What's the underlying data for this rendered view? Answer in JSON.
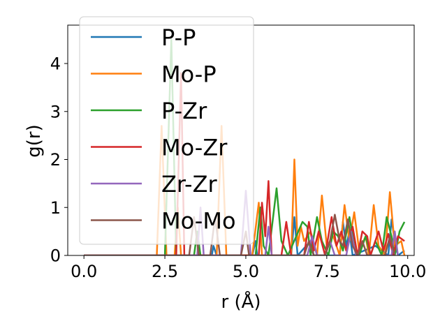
{
  "chart_data": {
    "type": "line",
    "xlabel": "r (Å)",
    "ylabel": "g(r)",
    "xlim": [
      -0.5,
      10.2
    ],
    "ylim": [
      0,
      4.8
    ],
    "xticks": [
      0.0,
      2.5,
      5.0,
      7.5,
      10.0
    ],
    "xtick_labels": [
      "0.0",
      "2.5",
      "5.0",
      "7.5",
      "10.0"
    ],
    "yticks": [
      0,
      1,
      2,
      3,
      4
    ],
    "ytick_labels": [
      "0",
      "1",
      "2",
      "3",
      "4"
    ],
    "grid": false,
    "legend_position": "upper-left",
    "series": [
      {
        "name": "P-P",
        "color": "#1f77b4",
        "points": [
          [
            0,
            0
          ],
          [
            3.95,
            0
          ],
          [
            4.0,
            0.2
          ],
          [
            4.1,
            0
          ],
          [
            5.2,
            0
          ],
          [
            5.3,
            0.3
          ],
          [
            5.35,
            0
          ],
          [
            6.4,
            0
          ],
          [
            6.5,
            0.8
          ],
          [
            6.6,
            0
          ],
          [
            7.0,
            0.3
          ],
          [
            7.1,
            0
          ],
          [
            7.9,
            0
          ],
          [
            8.0,
            0.7
          ],
          [
            8.1,
            0.2
          ],
          [
            8.2,
            0.5
          ],
          [
            8.3,
            0
          ],
          [
            9.0,
            0.2
          ],
          [
            9.4,
            0
          ],
          [
            9.5,
            0.75
          ],
          [
            9.6,
            0.3
          ],
          [
            9.7,
            0
          ],
          [
            9.9,
            0.1
          ]
        ]
      },
      {
        "name": "Mo-P",
        "color": "#ff7f0e",
        "points": [
          [
            0,
            0
          ],
          [
            2.25,
            0
          ],
          [
            2.4,
            2.7
          ],
          [
            2.55,
            0
          ],
          [
            2.8,
            0
          ],
          [
            2.9,
            1.0
          ],
          [
            3.0,
            0
          ],
          [
            4.1,
            0
          ],
          [
            4.25,
            2.7
          ],
          [
            4.4,
            0
          ],
          [
            5.2,
            0
          ],
          [
            5.4,
            1.1
          ],
          [
            5.5,
            0
          ],
          [
            6.4,
            0
          ],
          [
            6.5,
            2.0
          ],
          [
            6.6,
            0.2
          ],
          [
            6.7,
            0.6
          ],
          [
            6.8,
            0.3
          ],
          [
            7.0,
            0.5
          ],
          [
            7.2,
            0
          ],
          [
            7.35,
            1.25
          ],
          [
            7.5,
            0.2
          ],
          [
            7.7,
            0.4
          ],
          [
            7.9,
            0
          ],
          [
            8.05,
            1.05
          ],
          [
            8.2,
            0.3
          ],
          [
            8.35,
            0.9
          ],
          [
            8.5,
            0.1
          ],
          [
            8.7,
            0.4
          ],
          [
            8.8,
            0
          ],
          [
            8.95,
            1.05
          ],
          [
            9.1,
            0.2
          ],
          [
            9.3,
            0
          ],
          [
            9.45,
            1.32
          ],
          [
            9.6,
            0.2
          ],
          [
            9.8,
            0.3
          ],
          [
            9.9,
            0
          ]
        ]
      },
      {
        "name": "P-Zr",
        "color": "#2ca02c",
        "points": [
          [
            0,
            0
          ],
          [
            2.5,
            0
          ],
          [
            2.7,
            4.5
          ],
          [
            2.85,
            0
          ],
          [
            3.4,
            0
          ],
          [
            3.5,
            0.5
          ],
          [
            3.6,
            0
          ],
          [
            5.3,
            0
          ],
          [
            5.45,
            1.0
          ],
          [
            5.55,
            0.2
          ],
          [
            5.7,
            0
          ],
          [
            5.95,
            1.4
          ],
          [
            6.1,
            0.3
          ],
          [
            6.3,
            0
          ],
          [
            6.75,
            0.7
          ],
          [
            6.9,
            0.6
          ],
          [
            7.0,
            0
          ],
          [
            7.2,
            0.8
          ],
          [
            7.35,
            0.3
          ],
          [
            7.55,
            0
          ],
          [
            7.7,
            0.5
          ],
          [
            7.85,
            0.4
          ],
          [
            8.0,
            0.1
          ],
          [
            8.2,
            0.8
          ],
          [
            8.35,
            0.2
          ],
          [
            8.5,
            0
          ],
          [
            8.7,
            0.4
          ],
          [
            8.85,
            0
          ],
          [
            9.0,
            0.3
          ],
          [
            9.2,
            0
          ],
          [
            9.35,
            0.8
          ],
          [
            9.5,
            0.4
          ],
          [
            9.6,
            0
          ],
          [
            9.75,
            0.5
          ],
          [
            9.9,
            0.7
          ]
        ]
      },
      {
        "name": "Mo-Zr",
        "color": "#d62728",
        "points": [
          [
            0,
            0
          ],
          [
            2.85,
            0
          ],
          [
            3.0,
            3.8
          ],
          [
            3.1,
            0
          ],
          [
            5.4,
            0
          ],
          [
            5.5,
            1.1
          ],
          [
            5.6,
            0.4
          ],
          [
            5.7,
            1.55
          ],
          [
            5.8,
            0
          ],
          [
            6.1,
            0
          ],
          [
            6.25,
            0.7
          ],
          [
            6.4,
            0
          ],
          [
            6.8,
            0
          ],
          [
            6.95,
            0.7
          ],
          [
            7.1,
            0.1
          ],
          [
            7.25,
            0.5
          ],
          [
            7.45,
            0
          ],
          [
            7.65,
            0.8
          ],
          [
            7.8,
            0.2
          ],
          [
            7.95,
            0.5
          ],
          [
            8.1,
            0.1
          ],
          [
            8.3,
            0.6
          ],
          [
            8.45,
            0
          ],
          [
            8.6,
            0.5
          ],
          [
            8.75,
            0.4
          ],
          [
            8.85,
            0
          ],
          [
            9.1,
            0.5
          ],
          [
            9.25,
            0.1
          ],
          [
            9.4,
            0.45
          ],
          [
            9.55,
            0
          ],
          [
            9.7,
            0.4
          ],
          [
            9.9,
            0.3
          ]
        ]
      },
      {
        "name": "Zr-Zr",
        "color": "#9467bd",
        "points": [
          [
            0,
            0
          ],
          [
            3.5,
            0
          ],
          [
            3.6,
            1.0
          ],
          [
            3.7,
            0
          ],
          [
            4.85,
            0
          ],
          [
            5.0,
            1.35
          ],
          [
            5.15,
            0
          ],
          [
            5.6,
            0
          ],
          [
            5.7,
            0.6
          ],
          [
            5.8,
            0
          ],
          [
            6.9,
            0
          ],
          [
            7.05,
            0.4
          ],
          [
            7.2,
            0
          ],
          [
            7.45,
            0
          ],
          [
            7.6,
            0.3
          ],
          [
            7.75,
            0
          ],
          [
            8.1,
            0
          ],
          [
            8.25,
            0.5
          ],
          [
            8.4,
            0
          ],
          [
            9.5,
            0
          ],
          [
            9.6,
            0.5
          ],
          [
            9.7,
            0
          ]
        ]
      },
      {
        "name": "Mo-Mo",
        "color": "#8c564b",
        "points": [
          [
            0,
            0
          ],
          [
            3.25,
            0
          ],
          [
            3.4,
            0.8
          ],
          [
            3.55,
            0
          ],
          [
            3.9,
            0
          ],
          [
            4.05,
            0.8
          ],
          [
            4.2,
            0
          ],
          [
            4.85,
            0
          ],
          [
            5.0,
            0.5
          ],
          [
            5.1,
            0
          ],
          [
            6.8,
            0
          ],
          [
            6.95,
            0.3
          ],
          [
            7.1,
            0
          ],
          [
            7.45,
            0
          ],
          [
            7.6,
            0.3
          ],
          [
            7.75,
            0.85
          ],
          [
            7.9,
            0.3
          ],
          [
            8.0,
            0.2
          ],
          [
            8.15,
            0.75
          ],
          [
            8.3,
            0.2
          ],
          [
            8.45,
            0
          ],
          [
            8.6,
            0.3
          ],
          [
            8.75,
            0
          ],
          [
            9.3,
            0
          ],
          [
            9.45,
            0.4
          ],
          [
            9.6,
            0
          ]
        ]
      }
    ]
  }
}
